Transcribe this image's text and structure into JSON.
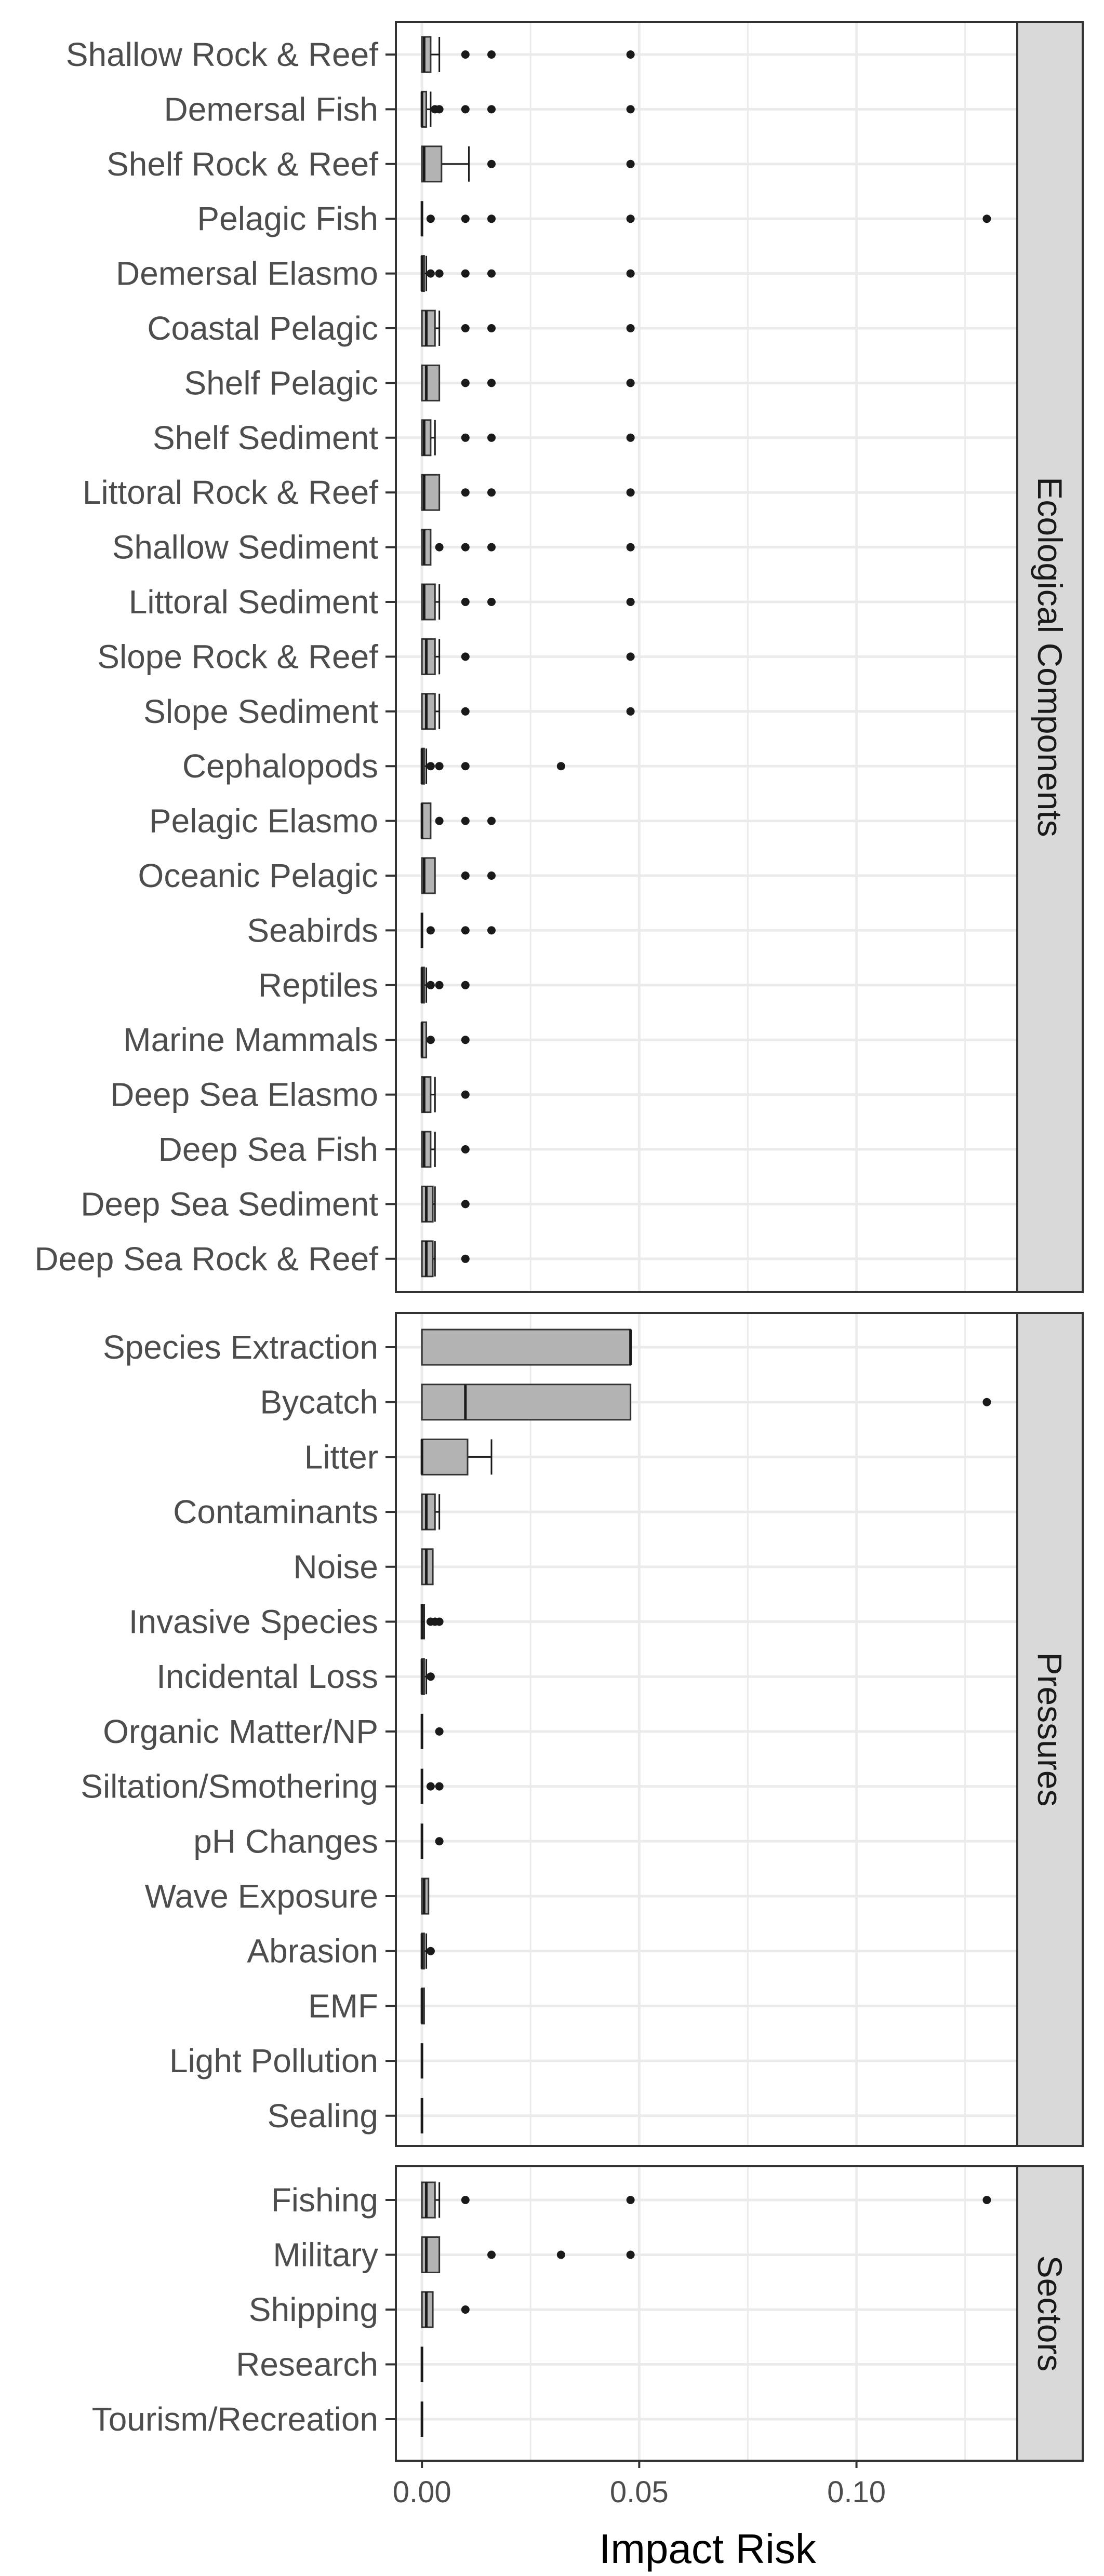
{
  "chart_data": {
    "type": "box",
    "xlabel": "Impact Risk",
    "xlim": [
      -0.006,
      0.137
    ],
    "x_ticks": [
      0.0,
      0.05,
      0.1
    ],
    "x_tick_labels": [
      "0.00",
      "0.05",
      "0.10"
    ],
    "grid": true,
    "colors": {
      "box_fill": "#b3b3b3",
      "panel_border": "#333333",
      "strip_fill": "#d9d9d9",
      "grid": "#ebebeb",
      "point": "#1a1a1a"
    },
    "facets": [
      {
        "label": "Ecological Components",
        "rows": [
          {
            "label": "Shallow Rock & Reef",
            "min": 0,
            "q1": 0,
            "median": 0.0005,
            "q3": 0.002,
            "max": 0.004,
            "outliers": [
              0.01,
              0.016,
              0.048
            ]
          },
          {
            "label": "Demersal Fish",
            "min": 0,
            "q1": 0,
            "median": 0,
            "q3": 0.001,
            "max": 0.002,
            "outliers": [
              0.003,
              0.004,
              0.01,
              0.016,
              0.048
            ]
          },
          {
            "label": "Shelf Rock & Reef",
            "min": 0,
            "q1": 0,
            "median": 0.0005,
            "q3": 0.0045,
            "max": 0.0108,
            "outliers": [
              0.016,
              0.048
            ]
          },
          {
            "label": "Pelagic Fish",
            "min": 0,
            "q1": 0,
            "median": 0,
            "q3": 0,
            "max": 0,
            "outliers": [
              0.002,
              0.01,
              0.016,
              0.048,
              0.13
            ]
          },
          {
            "label": "Demersal Elasmo",
            "min": 0,
            "q1": 0,
            "median": 0,
            "q3": 0.0005,
            "max": 0.001,
            "outliers": [
              0.002,
              0.004,
              0.01,
              0.016,
              0.048
            ]
          },
          {
            "label": "Coastal Pelagic",
            "min": 0,
            "q1": 0,
            "median": 0.001,
            "q3": 0.003,
            "max": 0.004,
            "outliers": [
              0.01,
              0.016,
              0.048
            ]
          },
          {
            "label": "Shelf Pelagic",
            "min": 0,
            "q1": 0,
            "median": 0.001,
            "q3": 0.004,
            "max": 0.004,
            "outliers": [
              0.01,
              0.016,
              0.048
            ]
          },
          {
            "label": "Shelf Sediment",
            "min": 0,
            "q1": 0,
            "median": 0.0005,
            "q3": 0.002,
            "max": 0.003,
            "outliers": [
              0.01,
              0.016,
              0.048
            ]
          },
          {
            "label": "Littoral Rock & Reef",
            "min": 0,
            "q1": 0,
            "median": 0.0005,
            "q3": 0.004,
            "max": 0.004,
            "outliers": [
              0.01,
              0.016,
              0.048
            ]
          },
          {
            "label": "Shallow Sediment",
            "min": 0,
            "q1": 0,
            "median": 0.0005,
            "q3": 0.002,
            "max": 0.002,
            "outliers": [
              0.004,
              0.01,
              0.016,
              0.048
            ]
          },
          {
            "label": "Littoral Sediment",
            "min": 0,
            "q1": 0,
            "median": 0.0005,
            "q3": 0.003,
            "max": 0.004,
            "outliers": [
              0.01,
              0.016,
              0.048
            ]
          },
          {
            "label": "Slope Rock & Reef",
            "min": 0,
            "q1": 0,
            "median": 0.001,
            "q3": 0.003,
            "max": 0.004,
            "outliers": [
              0.01,
              0.048
            ]
          },
          {
            "label": "Slope Sediment",
            "min": 0,
            "q1": 0,
            "median": 0.001,
            "q3": 0.003,
            "max": 0.004,
            "outliers": [
              0.01,
              0.048
            ]
          },
          {
            "label": "Cephalopods",
            "min": 0,
            "q1": 0,
            "median": 0,
            "q3": 0.0005,
            "max": 0.001,
            "outliers": [
              0.002,
              0.004,
              0.01,
              0.032
            ]
          },
          {
            "label": "Pelagic Elasmo",
            "min": 0,
            "q1": 0,
            "median": 0,
            "q3": 0.002,
            "max": 0.002,
            "outliers": [
              0.004,
              0.01,
              0.016
            ]
          },
          {
            "label": "Oceanic Pelagic",
            "min": 0,
            "q1": 0,
            "median": 0.0005,
            "q3": 0.003,
            "max": 0.003,
            "outliers": [
              0.01,
              0.016
            ]
          },
          {
            "label": "Seabirds",
            "min": 0,
            "q1": 0,
            "median": 0,
            "q3": 0,
            "max": 0,
            "outliers": [
              0.002,
              0.01,
              0.016
            ]
          },
          {
            "label": "Reptiles",
            "min": 0,
            "q1": 0,
            "median": 0,
            "q3": 0.0005,
            "max": 0.001,
            "outliers": [
              0.002,
              0.004,
              0.01
            ]
          },
          {
            "label": "Marine Mammals",
            "min": 0,
            "q1": 0,
            "median": 0,
            "q3": 0.001,
            "max": 0.001,
            "outliers": [
              0.002,
              0.01
            ]
          },
          {
            "label": "Deep Sea Elasmo",
            "min": 0,
            "q1": 0,
            "median": 0.0005,
            "q3": 0.002,
            "max": 0.003,
            "outliers": [
              0.01
            ]
          },
          {
            "label": "Deep Sea Fish",
            "min": 0,
            "q1": 0,
            "median": 0.0005,
            "q3": 0.002,
            "max": 0.003,
            "outliers": [
              0.01
            ]
          },
          {
            "label": "Deep Sea Sediment",
            "min": 0,
            "q1": 0,
            "median": 0.001,
            "q3": 0.0025,
            "max": 0.003,
            "outliers": [
              0.01
            ]
          },
          {
            "label": "Deep Sea Rock & Reef",
            "min": 0,
            "q1": 0,
            "median": 0.001,
            "q3": 0.0025,
            "max": 0.003,
            "outliers": [
              0.01
            ]
          }
        ]
      },
      {
        "label": "Pressures",
        "rows": [
          {
            "label": "Species Extraction",
            "min": 0,
            "q1": 0,
            "median": 0.048,
            "q3": 0.048,
            "max": 0.048,
            "outliers": []
          },
          {
            "label": "Bycatch",
            "min": 0,
            "q1": 0,
            "median": 0.01,
            "q3": 0.048,
            "max": 0.048,
            "outliers": [
              0.13
            ]
          },
          {
            "label": "Litter",
            "min": 0,
            "q1": 0,
            "median": 0,
            "q3": 0.0105,
            "max": 0.016,
            "outliers": []
          },
          {
            "label": "Contaminants",
            "min": 0,
            "q1": 0,
            "median": 0.001,
            "q3": 0.003,
            "max": 0.004,
            "outliers": []
          },
          {
            "label": "Noise",
            "min": 0,
            "q1": 0,
            "median": 0.001,
            "q3": 0.0025,
            "max": 0.0025,
            "outliers": []
          },
          {
            "label": "Invasive Species",
            "min": 0,
            "q1": 0,
            "median": 0,
            "q3": 0,
            "max": 0.0005,
            "outliers": [
              0.002,
              0.003,
              0.004
            ]
          },
          {
            "label": "Incidental Loss",
            "min": 0,
            "q1": 0,
            "median": 0,
            "q3": 0.0005,
            "max": 0.001,
            "outliers": [
              0.002
            ]
          },
          {
            "label": "Organic Matter/NP",
            "min": 0,
            "q1": 0,
            "median": 0,
            "q3": 0,
            "max": 0,
            "outliers": [
              0.004
            ]
          },
          {
            "label": "Siltation/Smothering",
            "min": 0,
            "q1": 0,
            "median": 0,
            "q3": 0,
            "max": 0,
            "outliers": [
              0.002,
              0.004
            ]
          },
          {
            "label": "pH Changes",
            "min": 0,
            "q1": 0,
            "median": 0,
            "q3": 0,
            "max": 0,
            "outliers": [
              0.004
            ]
          },
          {
            "label": "Wave Exposure",
            "min": 0,
            "q1": 0,
            "median": 0.0005,
            "q3": 0.0015,
            "max": 0.0015,
            "outliers": []
          },
          {
            "label": "Abrasion",
            "min": 0,
            "q1": 0,
            "median": 0,
            "q3": 0.0005,
            "max": 0.001,
            "outliers": [
              0.002
            ]
          },
          {
            "label": "EMF",
            "min": 0,
            "q1": 0,
            "median": 0,
            "q3": 0.0005,
            "max": 0.0005,
            "outliers": []
          },
          {
            "label": "Light Pollution",
            "min": 0,
            "q1": 0,
            "median": 0,
            "q3": 0,
            "max": 0,
            "outliers": []
          },
          {
            "label": "Sealing",
            "min": 0,
            "q1": 0,
            "median": 0,
            "q3": 0,
            "max": 0,
            "outliers": []
          }
        ]
      },
      {
        "label": "Sectors",
        "rows": [
          {
            "label": "Fishing",
            "min": 0,
            "q1": 0,
            "median": 0.001,
            "q3": 0.003,
            "max": 0.004,
            "outliers": [
              0.01,
              0.048,
              0.13
            ]
          },
          {
            "label": "Military",
            "min": 0,
            "q1": 0,
            "median": 0.001,
            "q3": 0.004,
            "max": 0.004,
            "outliers": [
              0.016,
              0.032,
              0.048
            ]
          },
          {
            "label": "Shipping",
            "min": 0,
            "q1": 0,
            "median": 0.001,
            "q3": 0.0025,
            "max": 0.0025,
            "outliers": [
              0.01
            ]
          },
          {
            "label": "Research",
            "min": 0,
            "q1": 0,
            "median": 0,
            "q3": 0,
            "max": 0,
            "outliers": []
          },
          {
            "label": "Tourism/Recreation",
            "min": 0,
            "q1": 0,
            "median": 0,
            "q3": 0,
            "max": 0,
            "outliers": []
          }
        ]
      }
    ]
  }
}
